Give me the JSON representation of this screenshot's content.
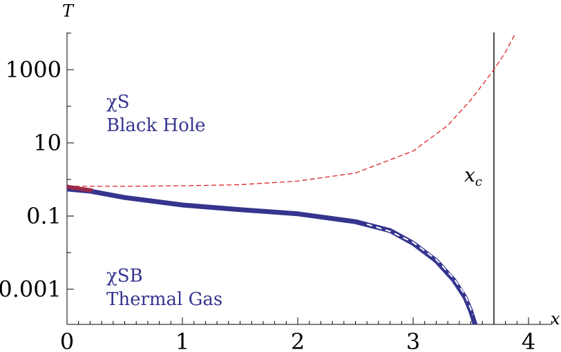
{
  "chart_data": {
    "type": "line",
    "title": "",
    "xlabel": "x",
    "ylabel": "T",
    "yscale": "log",
    "xlim": [
      0,
      4.2
    ],
    "ylim": [
      0.0001,
      10000
    ],
    "x_ticks": [
      "0",
      "1",
      "2",
      "3",
      "4"
    ],
    "y_ticks": [
      "0.001",
      "0.1",
      "10",
      "1000"
    ],
    "critical_x": 3.7,
    "critical_label": "x",
    "critical_label_sub": "c",
    "annotations": {
      "top": {
        "line1_symbol": "χ",
        "line1_text": "S",
        "line2": "Black Hole"
      },
      "bottom": {
        "line1_symbol": "χ",
        "line1_text": "SB",
        "line2": "Thermal Gas"
      }
    },
    "colors": {
      "blue": "#35358f",
      "red": "#e02020",
      "axis": "#000000"
    },
    "series": [
      {
        "style": "red-dashed",
        "x": [
          0,
          0.5,
          1.0,
          1.5,
          2.0,
          2.5,
          3.0,
          3.3,
          3.5,
          3.7,
          3.8,
          3.88
        ],
        "y": [
          0.65,
          0.65,
          0.67,
          0.72,
          0.9,
          1.5,
          6,
          30,
          150,
          1000,
          3000,
          9000
        ]
      },
      {
        "style": "blue-thick",
        "x": [
          0,
          0.2,
          0.5,
          1.0,
          1.5,
          2.0,
          2.5,
          2.8,
          3.0,
          3.2,
          3.35,
          3.45,
          3.5,
          3.54
        ],
        "y": [
          0.55,
          0.48,
          0.32,
          0.2,
          0.15,
          0.115,
          0.07,
          0.04,
          0.018,
          0.006,
          0.0018,
          0.0006,
          0.00025,
          0.0001
        ]
      },
      {
        "style": "red-thick-initial",
        "x": [
          0,
          0.1,
          0.22
        ],
        "y": [
          0.63,
          0.56,
          0.5
        ]
      },
      {
        "style": "white-dashed-overlay",
        "x": [
          2.6,
          2.8,
          3.0,
          3.2,
          3.35,
          3.45,
          3.52
        ],
        "y": [
          0.06,
          0.038,
          0.019,
          0.0065,
          0.002,
          0.0007,
          0.0002
        ]
      },
      {
        "style": "blue-thin-dashed",
        "x": [
          0,
          0.3,
          0.7,
          1.2,
          1.6
        ],
        "y": [
          0.55,
          0.38,
          0.24,
          0.16,
          0.14
        ]
      }
    ]
  }
}
